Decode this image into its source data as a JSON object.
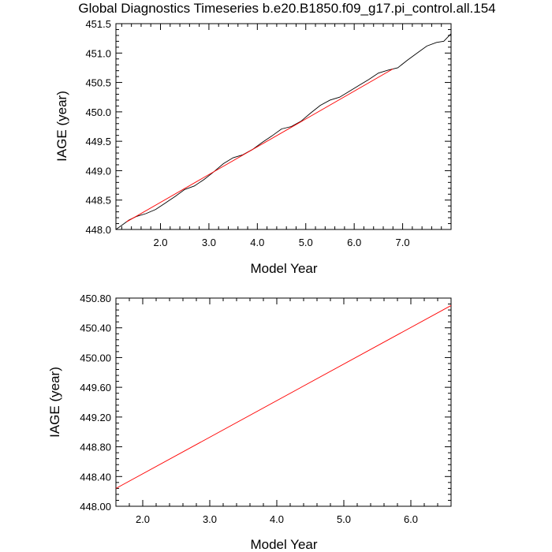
{
  "figure": {
    "title": "Global Diagnostics Timeseries b.e20.B1850.f09_g17.pi_control.all.154"
  },
  "colors": {
    "background": "#ffffff",
    "axis": "#000000",
    "series_raw": "#000000",
    "series_fit": "#ff0000"
  },
  "chart_data": [
    {
      "type": "line",
      "title": "Global Diagnostics Timeseries b.e20.B1850.f09_g17.pi_control.all.154",
      "xlabel": "Model Year",
      "ylabel": "IAGE (year)",
      "xlim": [
        1.08,
        8.0
      ],
      "ylim": [
        448.0,
        451.5
      ],
      "xticks": [
        2.0,
        3.0,
        4.0,
        5.0,
        6.0,
        7.0
      ],
      "xtick_labels": [
        "2.0",
        "3.0",
        "4.0",
        "5.0",
        "6.0",
        "7.0"
      ],
      "yticks": [
        448.0,
        448.5,
        449.0,
        449.5,
        450.0,
        450.5,
        451.0,
        451.5
      ],
      "ytick_labels": [
        "448.0",
        "448.5",
        "449.0",
        "449.5",
        "450.0",
        "450.5",
        "451.0",
        "451.5"
      ],
      "grid": false,
      "series": [
        {
          "color": "#000000",
          "x": [
            1.08,
            1.2,
            1.35,
            1.5,
            1.7,
            1.9,
            2.1,
            2.3,
            2.5,
            2.7,
            2.9,
            3.1,
            3.3,
            3.5,
            3.7,
            3.9,
            4.1,
            4.3,
            4.5,
            4.7,
            4.9,
            5.1,
            5.3,
            5.5,
            5.7,
            5.9,
            6.1,
            6.3,
            6.5,
            6.7,
            6.9,
            7.1,
            7.3,
            7.5,
            7.7,
            7.85,
            8.0
          ],
          "y": [
            448.0,
            448.07,
            448.16,
            448.22,
            448.27,
            448.34,
            448.45,
            448.56,
            448.68,
            448.74,
            448.85,
            448.98,
            449.12,
            449.22,
            449.27,
            449.36,
            449.48,
            449.59,
            449.71,
            449.75,
            449.84,
            449.98,
            450.11,
            450.2,
            450.25,
            450.35,
            450.45,
            450.55,
            450.66,
            450.71,
            450.75,
            450.88,
            451.0,
            451.12,
            451.18,
            451.2,
            451.33
          ]
        },
        {
          "color": "#ff0000",
          "x": [
            1.3,
            6.8
          ],
          "y": [
            448.13,
            450.73
          ]
        }
      ]
    },
    {
      "type": "line",
      "xlabel": "Model Year",
      "ylabel": "IAGE (year)",
      "xlim": [
        1.6,
        6.6
      ],
      "ylim": [
        448.0,
        450.8
      ],
      "xticks": [
        2.0,
        3.0,
        4.0,
        5.0,
        6.0
      ],
      "xtick_labels": [
        "2.0",
        "3.0",
        "4.0",
        "5.0",
        "6.0"
      ],
      "yticks": [
        448.0,
        448.4,
        448.8,
        449.2,
        449.6,
        450.0,
        450.4,
        450.8
      ],
      "ytick_labels": [
        "448.00",
        "448.40",
        "448.80",
        "449.20",
        "449.60",
        "450.00",
        "450.40",
        "450.80"
      ],
      "grid": false,
      "series": [
        {
          "color": "#ff0000",
          "x": [
            1.6,
            6.6
          ],
          "y": [
            448.24,
            450.7
          ]
        }
      ]
    }
  ]
}
